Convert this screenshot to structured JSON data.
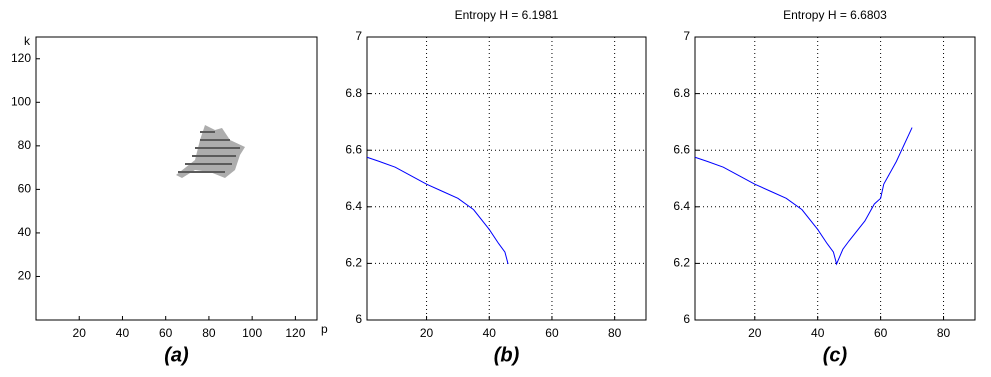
{
  "chart_data": [
    {
      "type": "image",
      "xlabel": "p",
      "ylabel": "k",
      "caption": "(a)",
      "xlim": [
        0,
        130
      ],
      "ylim": [
        0,
        130
      ],
      "xticks": [
        20,
        40,
        60,
        80,
        100,
        120
      ],
      "yticks": [
        20,
        40,
        60,
        80,
        100,
        120
      ],
      "grid": false
    },
    {
      "type": "line",
      "title": "Entropy H = 6.1981",
      "caption": "(b)",
      "xlim": [
        1,
        90
      ],
      "ylim": [
        6,
        7
      ],
      "xticks": [
        20,
        40,
        60,
        80
      ],
      "yticks": [
        6,
        6.2,
        6.4,
        6.6,
        6.8,
        7
      ],
      "grid": true,
      "series": [
        {
          "color": "#0000ff",
          "x": [
            1,
            5,
            10,
            15,
            20,
            25,
            30,
            35,
            40,
            43,
            45,
            46
          ],
          "values": [
            6.575,
            6.56,
            6.54,
            6.51,
            6.48,
            6.455,
            6.43,
            6.39,
            6.32,
            6.27,
            6.24,
            6.198
          ]
        }
      ]
    },
    {
      "type": "line",
      "title": "Entropy H = 6.6803",
      "caption": "(c)",
      "xlim": [
        1,
        90
      ],
      "ylim": [
        6,
        7
      ],
      "xticks": [
        20,
        40,
        60,
        80
      ],
      "yticks": [
        6,
        6.2,
        6.4,
        6.6,
        6.8,
        7
      ],
      "grid": true,
      "series": [
        {
          "color": "#0000ff",
          "x": [
            1,
            5,
            10,
            15,
            20,
            25,
            30,
            35,
            40,
            43,
            45,
            46,
            48,
            50,
            55,
            58,
            60,
            61,
            65,
            70
          ],
          "values": [
            6.575,
            6.56,
            6.54,
            6.51,
            6.48,
            6.455,
            6.43,
            6.39,
            6.32,
            6.27,
            6.24,
            6.198,
            6.25,
            6.28,
            6.35,
            6.41,
            6.43,
            6.48,
            6.56,
            6.68
          ]
        }
      ]
    }
  ]
}
